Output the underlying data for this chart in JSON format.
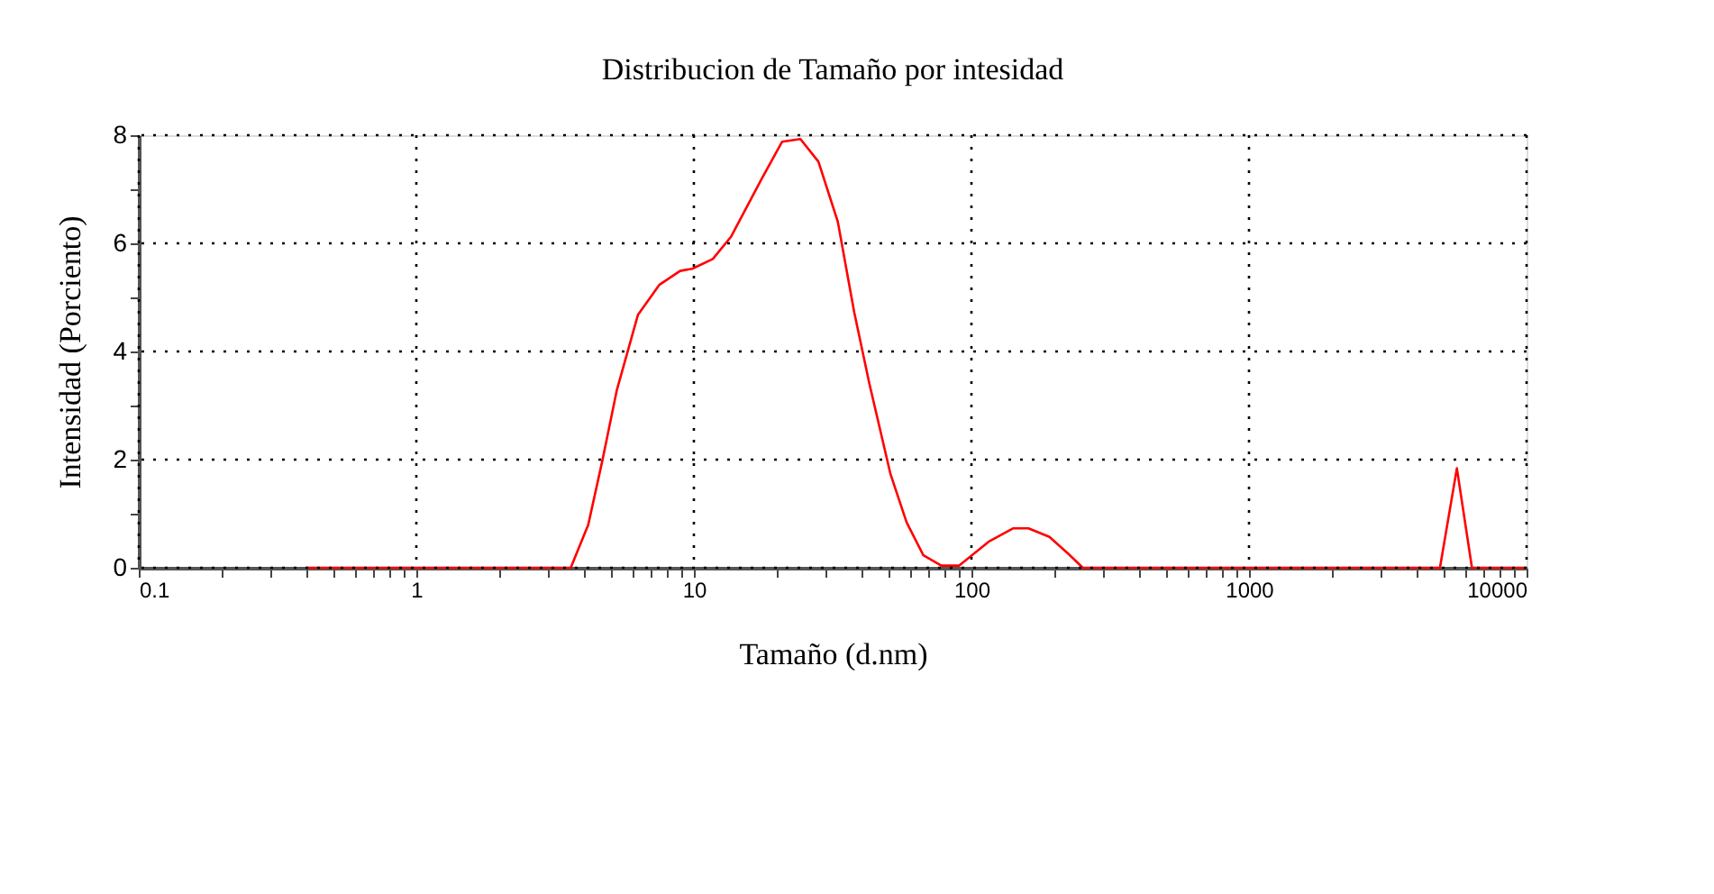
{
  "chart_data": {
    "type": "line",
    "title": "Distribucion de Tamaño por intesidad",
    "xlabel": "Tamaño (d.nm)",
    "ylabel": "Intensidad (Porciento)",
    "log": "x",
    "grid": true,
    "marker": "none",
    "line_style": "solid",
    "x": [
      0.4,
      3.6,
      4.16,
      4.67,
      5.28,
      6.29,
      7.5,
      8.92,
      9.86,
      11.7,
      13.6,
      17.5,
      20.8,
      24.2,
      28.1,
      33.0,
      37.8,
      42.9,
      51.1,
      58.4,
      67.1,
      77.9,
      90.4,
      116,
      141.6,
      160.5,
      191,
      222,
      252,
      4875,
      5610,
      6357,
      10000
    ],
    "series": [
      {
        "color": "#ff0000",
        "values": [
          0,
          0,
          0.79,
          1.96,
          3.29,
          4.68,
          5.23,
          5.49,
          5.53,
          5.71,
          6.12,
          7.18,
          7.88,
          7.93,
          7.51,
          6.4,
          4.73,
          3.4,
          1.73,
          0.84,
          0.23,
          0.04,
          0.04,
          0.49,
          0.73,
          0.73,
          0.57,
          0.27,
          0,
          0,
          1.84,
          0,
          0
        ]
      }
    ],
    "xlim": [
      0.1,
      10000
    ],
    "ylim": [
      0,
      8
    ],
    "xticks": [
      0.1,
      {
        "value": 0.2,
        "label": null
      },
      {
        "value": 0.3,
        "label": null
      },
      {
        "value": 0.4,
        "label": null
      },
      {
        "value": 0.5,
        "label": null
      },
      {
        "value": 0.6,
        "label": null
      },
      {
        "value": 0.7,
        "label": null
      },
      {
        "value": 0.8,
        "label": null
      },
      {
        "value": 0.9,
        "label": null
      },
      1,
      {
        "value": 2,
        "label": null
      },
      {
        "value": 3,
        "label": null
      },
      {
        "value": 4,
        "label": null
      },
      {
        "value": 5,
        "label": null
      },
      {
        "value": 6,
        "label": null
      },
      {
        "value": 7,
        "label": null
      },
      {
        "value": 8,
        "label": null
      },
      {
        "value": 9,
        "label": null
      },
      10,
      {
        "value": 20,
        "label": null
      },
      {
        "value": 30,
        "label": null
      },
      {
        "value": 40,
        "label": null
      },
      {
        "value": 50,
        "label": null
      },
      {
        "value": 60,
        "label": null
      },
      {
        "value": 70,
        "label": null
      },
      {
        "value": 80,
        "label": null
      },
      {
        "value": 90,
        "label": null
      },
      100,
      {
        "value": 200,
        "label": null
      },
      {
        "value": 300,
        "label": null
      },
      {
        "value": 400,
        "label": null
      },
      {
        "value": 500,
        "label": null
      },
      {
        "value": 600,
        "label": null
      },
      {
        "value": 700,
        "label": null
      },
      {
        "value": 800,
        "label": null
      },
      {
        "value": 900,
        "label": null
      },
      1000,
      {
        "value": 2000,
        "label": null
      },
      {
        "value": 3000,
        "label": null
      },
      {
        "value": 4000,
        "label": null
      },
      {
        "value": 5000,
        "label": null
      },
      {
        "value": 6000,
        "label": null
      },
      {
        "value": 7000,
        "label": null
      },
      {
        "value": 8000,
        "label": null
      },
      {
        "value": 9000,
        "label": null
      },
      10000
    ],
    "yticks": [
      0,
      {
        "value": 1,
        "label": null
      },
      2,
      {
        "value": 3,
        "label": null
      },
      4,
      {
        "value": 5,
        "label": null
      },
      6,
      {
        "value": 7,
        "label": null
      },
      8
    ]
  }
}
